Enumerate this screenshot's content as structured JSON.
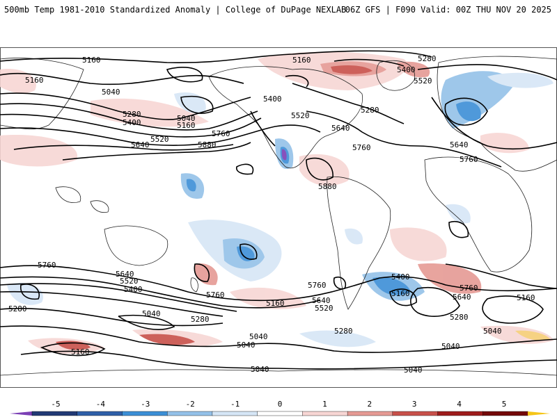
{
  "header": {
    "title": "500mb Temp 1981-2010 Standardized Anomaly | College of DuPage NEXLAB",
    "run_info": "06Z GFS | F090 Valid: 00Z THU NOV 20 2025"
  },
  "colorbar": {
    "ticks": [
      "-5",
      "-4",
      "-3",
      "-2",
      "-1",
      "0",
      "1",
      "2",
      "3",
      "4",
      "5"
    ],
    "colors": [
      "#7b3fb5",
      "#223a75",
      "#2f5fa8",
      "#3c8fd6",
      "#94c1e8",
      "#d6e6f6",
      "#ffffff",
      "#f7d6d4",
      "#e59a94",
      "#c8504a",
      "#9e1c1c",
      "#740808",
      "#f5c518"
    ]
  },
  "height_labels": [
    "5160",
    "5040",
    "5160",
    "5280",
    "5400",
    "5160",
    "5040",
    "5640",
    "5520",
    "5760",
    "5880",
    "5160",
    "5280",
    "5400",
    "5520",
    "5400",
    "5520",
    "5640",
    "5280",
    "5760",
    "5640",
    "5760",
    "5880",
    "5760",
    "5640",
    "5520",
    "5400",
    "5280",
    "5040",
    "5160",
    "5760",
    "5040",
    "5280",
    "5760",
    "5160",
    "5640",
    "5520",
    "5280",
    "5040",
    "5040",
    "5400",
    "5160",
    "5760",
    "5640",
    "5280",
    "5160",
    "5040",
    "5040",
    "5040"
  ],
  "colors": {
    "contour": "#000000",
    "border": "#222222",
    "background": "#ffffff"
  }
}
